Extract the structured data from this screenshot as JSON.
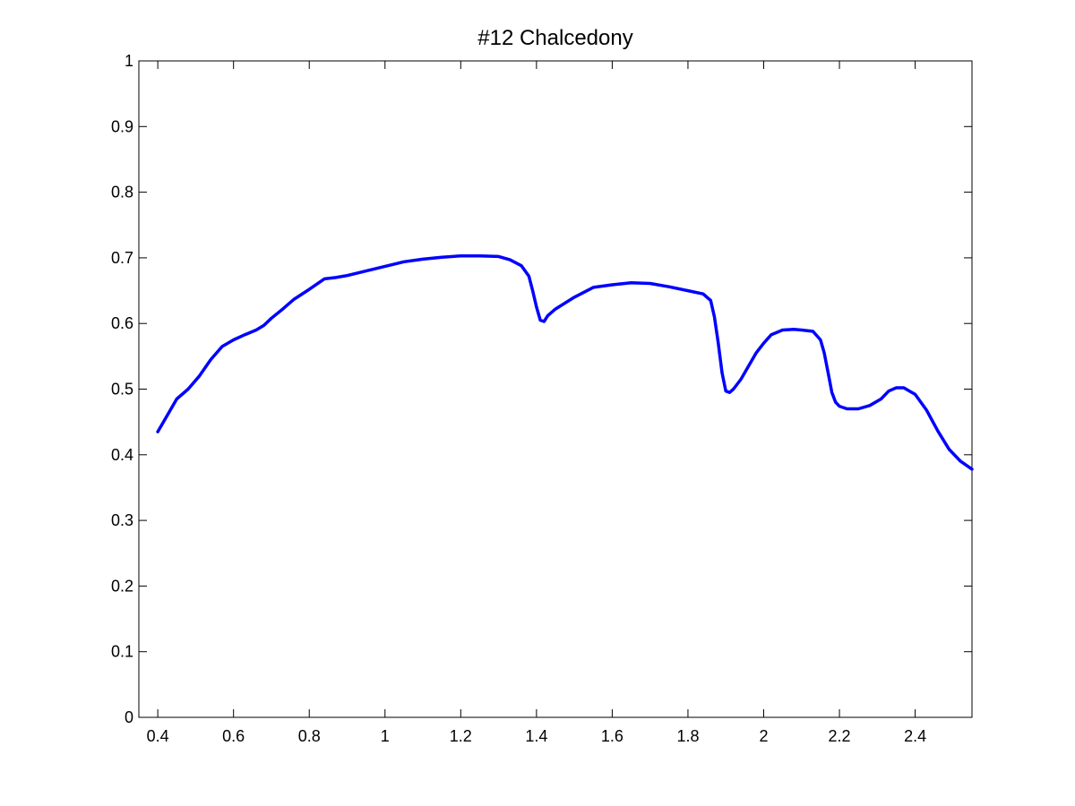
{
  "chart_data": {
    "type": "line",
    "title": "#12 Chalcedony",
    "xlabel": "",
    "ylabel": "",
    "xlim": [
      0.35,
      2.55
    ],
    "ylim": [
      0,
      1
    ],
    "xticks": [
      0.4,
      0.6,
      0.8,
      1,
      1.2,
      1.4,
      1.6,
      1.8,
      2,
      2.2,
      2.4
    ],
    "xtick_labels": [
      "0.4",
      "0.6",
      "0.8",
      "1",
      "1.2",
      "1.4",
      "1.6",
      "1.8",
      "2",
      "2.2",
      "2.4"
    ],
    "yticks": [
      0,
      0.1,
      0.2,
      0.3,
      0.4,
      0.5,
      0.6,
      0.7,
      0.8,
      0.9,
      1
    ],
    "ytick_labels": [
      "0",
      "0.1",
      "0.2",
      "0.3",
      "0.4",
      "0.5",
      "0.6",
      "0.7",
      "0.8",
      "0.9",
      "1"
    ],
    "grid": false,
    "line_color": "#0000ff",
    "series": [
      {
        "x": [
          0.4,
          0.42,
          0.45,
          0.48,
          0.51,
          0.54,
          0.57,
          0.6,
          0.63,
          0.66,
          0.68,
          0.7,
          0.73,
          0.76,
          0.8,
          0.84,
          0.87,
          0.9,
          0.95,
          1.0,
          1.05,
          1.1,
          1.15,
          1.2,
          1.25,
          1.3,
          1.33,
          1.36,
          1.38,
          1.39,
          1.4,
          1.41,
          1.42,
          1.43,
          1.45,
          1.5,
          1.55,
          1.6,
          1.65,
          1.7,
          1.75,
          1.8,
          1.84,
          1.86,
          1.87,
          1.88,
          1.89,
          1.9,
          1.91,
          1.92,
          1.94,
          1.96,
          1.98,
          2.0,
          2.02,
          2.05,
          2.08,
          2.1,
          2.13,
          2.15,
          2.16,
          2.17,
          2.18,
          2.19,
          2.2,
          2.22,
          2.25,
          2.28,
          2.31,
          2.33,
          2.35,
          2.37,
          2.4,
          2.43,
          2.46,
          2.49,
          2.52,
          2.55
        ],
        "y": [
          0.435,
          0.455,
          0.485,
          0.5,
          0.52,
          0.545,
          0.565,
          0.575,
          0.583,
          0.59,
          0.597,
          0.608,
          0.622,
          0.637,
          0.652,
          0.668,
          0.67,
          0.673,
          0.68,
          0.687,
          0.694,
          0.698,
          0.701,
          0.703,
          0.703,
          0.702,
          0.697,
          0.688,
          0.672,
          0.65,
          0.625,
          0.605,
          0.603,
          0.612,
          0.622,
          0.64,
          0.655,
          0.659,
          0.662,
          0.661,
          0.656,
          0.65,
          0.645,
          0.635,
          0.61,
          0.57,
          0.525,
          0.497,
          0.495,
          0.5,
          0.515,
          0.535,
          0.555,
          0.57,
          0.583,
          0.59,
          0.591,
          0.59,
          0.588,
          0.575,
          0.555,
          0.525,
          0.495,
          0.48,
          0.474,
          0.47,
          0.47,
          0.475,
          0.485,
          0.497,
          0.502,
          0.502,
          0.492,
          0.468,
          0.436,
          0.408,
          0.39,
          0.378
        ]
      }
    ]
  }
}
